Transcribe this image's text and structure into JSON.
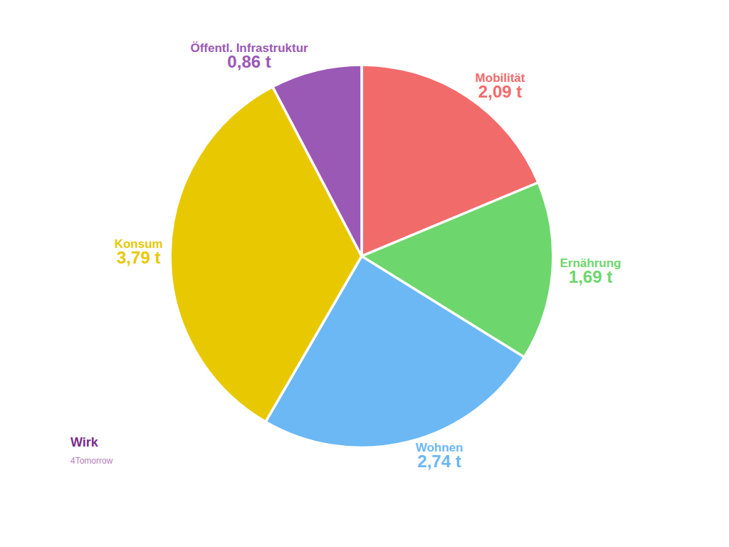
{
  "chart_data": {
    "type": "pie",
    "categories": [
      "Mobilität",
      "Ernährung",
      "Wohnen",
      "Konsum",
      "Öffentl. Infrastruktur"
    ],
    "values": [
      2.09,
      1.69,
      2.74,
      3.79,
      0.86
    ],
    "value_labels": [
      "2,09 t",
      "1,69 t",
      "2,74 t",
      "3,79 t",
      "0,86 t"
    ],
    "colors": [
      "#F26B6B",
      "#6DD66D",
      "#6BB8F5",
      "#E8C800",
      "#9B59B6"
    ],
    "data_labels": true,
    "annotations": [
      "Wirk",
      "4Tomorrow"
    ]
  }
}
